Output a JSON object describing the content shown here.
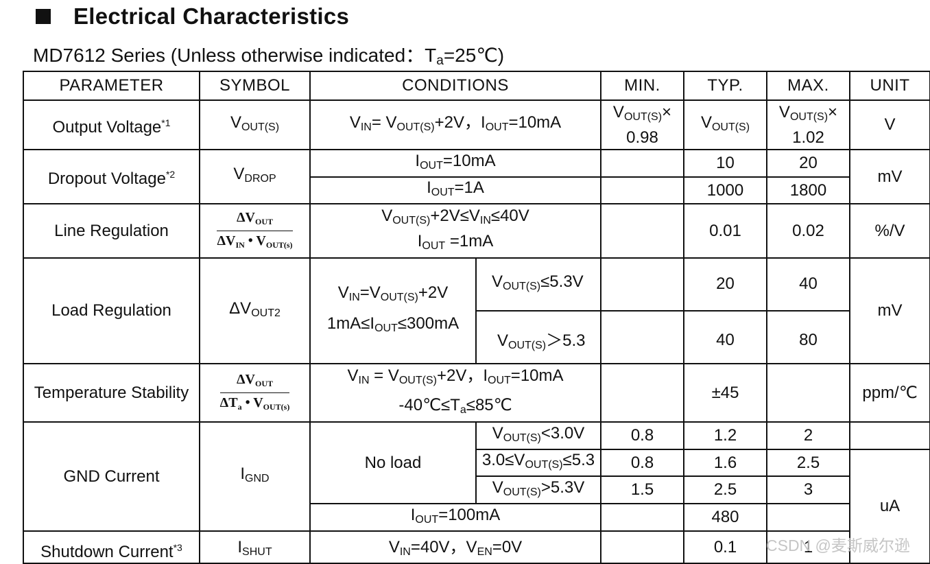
{
  "heading": {
    "title": "Electrical Characteristics"
  },
  "subtitle": {
    "prefix": "MD7612 Series (Unless otherwise indicated：T",
    "sub": "a",
    "suffix": "=25℃)"
  },
  "table": {
    "headers": [
      "PARAMETER",
      "SYMBOL",
      "CONDITIONS",
      "MIN.",
      "TYP.",
      "MAX.",
      "UNIT"
    ],
    "output_voltage": {
      "param": "Output Voltage",
      "note": "*1",
      "symbol": "V",
      "symbol_sub": "OUT(S)",
      "cond": [
        "V",
        "IN",
        "= V",
        "OUT(S)",
        "+2V，I",
        "OUT",
        "=10mA"
      ],
      "min": [
        "V",
        "OUT(S)",
        "×",
        "0.98"
      ],
      "typ": [
        "V",
        "OUT(S)"
      ],
      "max": [
        "V",
        "OUT(S)",
        "×",
        "1.02"
      ],
      "unit": "V"
    },
    "dropout_voltage": {
      "param": "Dropout Voltage",
      "note": "*2",
      "symbol": "V",
      "symbol_sub": "DROP",
      "row1": {
        "cond": [
          "I",
          "OUT",
          "=10mA"
        ],
        "typ": "10",
        "max": "20"
      },
      "row2": {
        "cond": [
          "I",
          "OUT",
          "=1A"
        ],
        "typ": "1000",
        "max": "1800"
      },
      "unit": "mV"
    },
    "line_regulation": {
      "param": "Line Regulation",
      "frac_num": [
        "ΔV",
        "OUT"
      ],
      "frac_den": [
        "ΔV",
        "IN",
        " • V",
        "OUT(s)"
      ],
      "cond1": [
        "V",
        "OUT(S)",
        "+2V≤V",
        "IN",
        "≤40V"
      ],
      "cond2": [
        "I",
        "OUT",
        " =1mA"
      ],
      "typ": "0.01",
      "max": "0.02",
      "unit": "%/V"
    },
    "load_regulation": {
      "param": "Load Regulation",
      "symbol": "ΔV",
      "symbol_sub": "OUT2",
      "cond1": [
        "V",
        "IN",
        "=V",
        "OUT(S)",
        "+2V"
      ],
      "cond2": [
        "1mA≤I",
        "OUT",
        "≤300mA"
      ],
      "row1": {
        "sub": [
          "V",
          "OUT(S)",
          "≤5.3V"
        ],
        "typ": "20",
        "max": "40"
      },
      "row2": {
        "sub": [
          "V",
          "OUT(S)",
          "＞5.3"
        ],
        "typ": "40",
        "max": "80"
      },
      "unit": "mV"
    },
    "temperature_stability": {
      "param": "Temperature Stability",
      "frac_num": [
        "ΔV",
        "OUT"
      ],
      "frac_den": [
        "ΔT",
        "a",
        " • V",
        "OUT(s)"
      ],
      "cond1": [
        "V",
        "IN",
        " = V",
        "OUT(S)",
        "+2V，I",
        "OUT",
        "=10mA"
      ],
      "cond2": [
        "-40℃≤T",
        "a",
        "≤85℃"
      ],
      "typ": "±45",
      "unit": "ppm/℃"
    },
    "gnd_current": {
      "param": "GND Current",
      "symbol": "I",
      "symbol_sub": "GND",
      "group": "No load",
      "rows": [
        {
          "cond": [
            "V",
            "OUT(S)",
            "<3.0V"
          ],
          "min": "0.8",
          "typ": "1.2",
          "max": "2"
        },
        {
          "cond": [
            "3.0≤V",
            "OUT(S)",
            "≤5.3"
          ],
          "min": "0.8",
          "typ": "1.6",
          "max": "2.5"
        },
        {
          "cond": [
            "V",
            "OUT(S)",
            ">5.3V"
          ],
          "min": "1.5",
          "typ": "2.5",
          "max": "3"
        }
      ],
      "row4": {
        "cond": [
          "I",
          "OUT",
          "=100mA"
        ],
        "typ": "480"
      },
      "unit": "uA"
    },
    "shutdown_current": {
      "param": "Shutdown Current",
      "note": "*3",
      "symbol": "I",
      "symbol_sub": "SHUT",
      "cond": [
        "V",
        "IN",
        "=40V，V",
        "EN",
        "=0V"
      ],
      "typ": "0.1",
      "max": "1"
    }
  },
  "watermark": "CSDN @麦斯威尔逊"
}
